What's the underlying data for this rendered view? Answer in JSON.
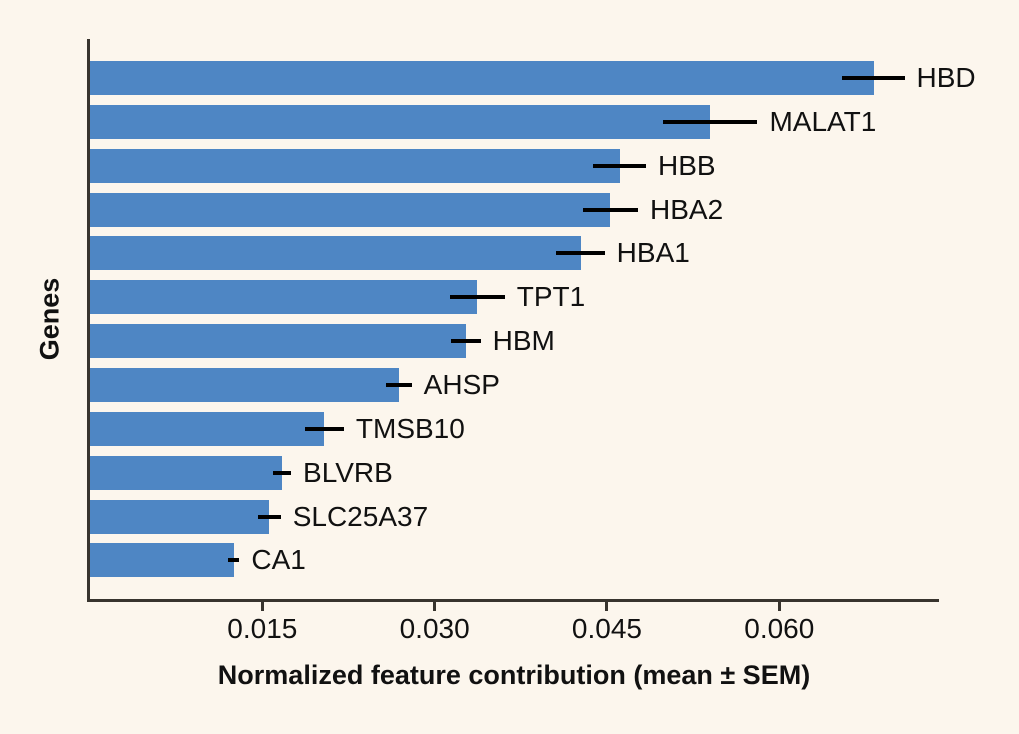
{
  "figure": {
    "background_color": "#fcf6ed",
    "axis_color": "#38342e",
    "text_color": "#111111"
  },
  "chart_data": {
    "type": "bar",
    "orientation": "horizontal",
    "title": "",
    "xlabel": "Normalized feature contribution (mean ± SEM)",
    "ylabel": "Genes",
    "categories": [
      "HBD",
      "MALAT1",
      "HBB",
      "HBA2",
      "HBA1",
      "TPT1",
      "HBM",
      "AHSP",
      "TMSB10",
      "BLVRB",
      "SLC25A37",
      "CA1"
    ],
    "values": [
      0.0682,
      0.054,
      0.0461,
      0.0453,
      0.0427,
      0.0337,
      0.0327,
      0.0269,
      0.0204,
      0.0167,
      0.0156,
      0.0125
    ],
    "sem": [
      0.0027,
      0.0041,
      0.0023,
      0.0024,
      0.0021,
      0.0024,
      0.0013,
      0.0011,
      0.0017,
      0.0008,
      0.001,
      0.0005
    ],
    "xticks": [
      0.015,
      0.03,
      0.045,
      0.06
    ],
    "xtick_labels": [
      "0.015",
      "0.030",
      "0.045",
      "0.060"
    ],
    "xlim": [
      0,
      0.0739
    ],
    "grid": false,
    "legend": null,
    "bar_color": "#4e86c4",
    "error_bar_color": "#000000"
  }
}
